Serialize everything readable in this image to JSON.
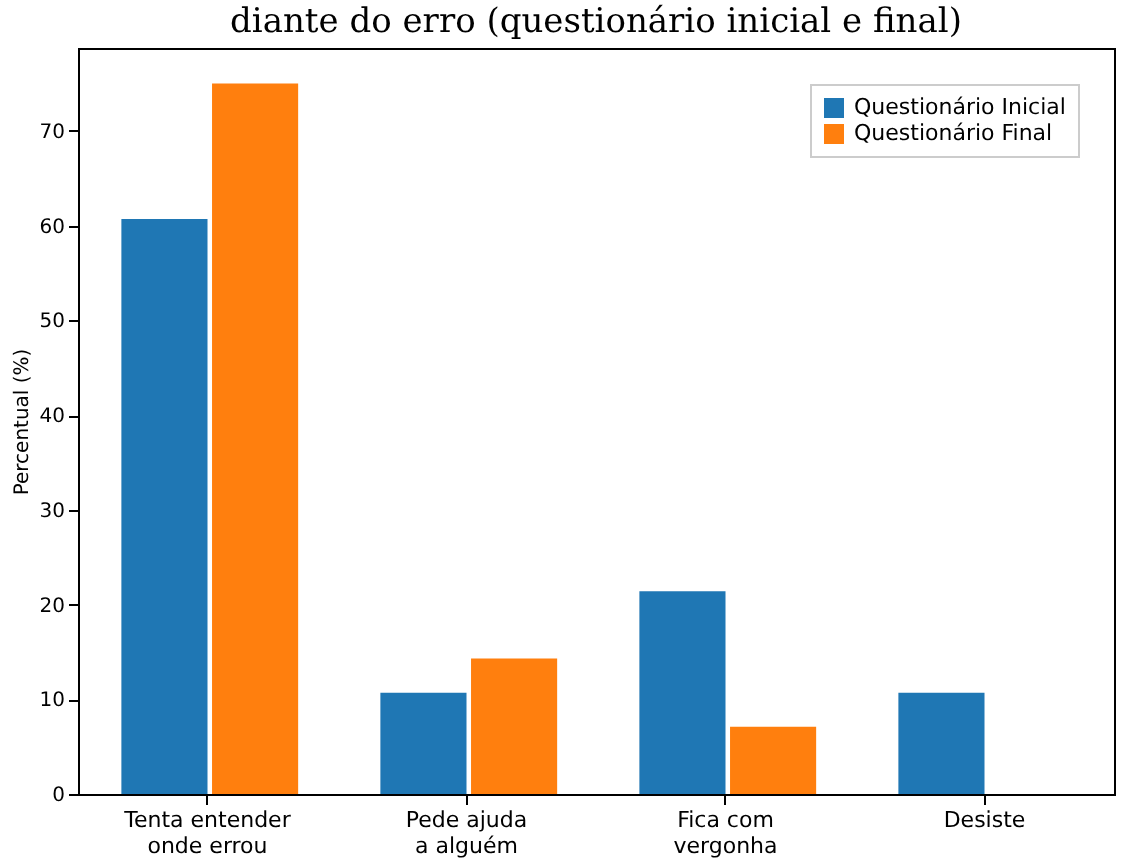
{
  "chart_data": {
    "type": "bar",
    "title": "diante do erro (questionário inicial e final)",
    "ylabel": "Percentual (%)",
    "categories": [
      "Tenta entender\nonde errou",
      "Pede ajuda\na alguém",
      "Fica com\nvergonha",
      "Desiste"
    ],
    "series": [
      {
        "name": "Questionário Inicial",
        "color": "#1f77b4",
        "values": [
          60.7,
          10.7,
          21.4,
          10.7
        ]
      },
      {
        "name": "Questionário Final",
        "color": "#ff7f0e",
        "values": [
          75.0,
          14.3,
          7.1,
          0
        ]
      }
    ],
    "ylim": [
      0,
      78.75
    ],
    "yticks": [
      0,
      10,
      20,
      30,
      40,
      50,
      60,
      70
    ],
    "grid": false,
    "legend": "top right"
  }
}
